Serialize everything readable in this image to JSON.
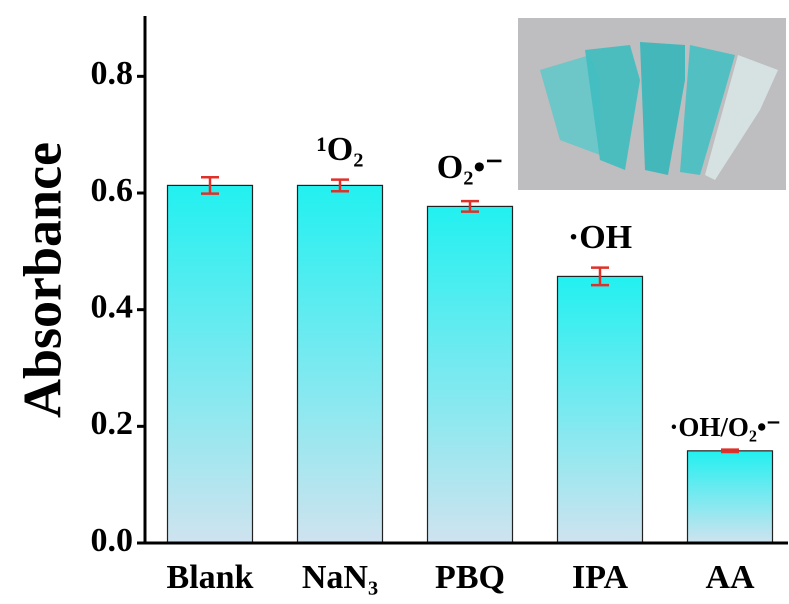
{
  "chart_data": {
    "type": "bar",
    "y_label": "Absorbance",
    "categories": [
      "Blank",
      "NaN₃",
      "PBQ",
      "IPA",
      "AA"
    ],
    "values": [
      0.613,
      0.613,
      0.577,
      0.457,
      0.158
    ],
    "errors": [
      0.014,
      0.01,
      0.009,
      0.015,
      0.002
    ],
    "annotations": [
      "¹O₂",
      "O₂•⁻",
      "·OH",
      "·OH/O₂•⁻"
    ],
    "color": "#22f0f0",
    "error_color": "#e0302a",
    "ylim": [
      0,
      0.9
    ],
    "yticks": [
      {
        "value": 0,
        "label": "0.0"
      },
      0.2,
      0.4,
      0.6,
      0.8
    ]
  }
}
